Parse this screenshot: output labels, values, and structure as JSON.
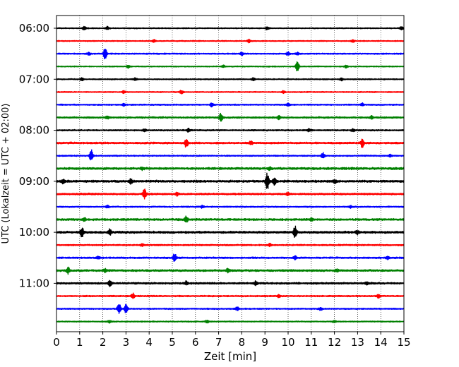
{
  "chart_data": {
    "type": "line",
    "xlabel": "Zeit  [min]",
    "ylabel": "UTC (Lokalzeit = UTC + 02:00)",
    "xlim": [
      0,
      15
    ],
    "x_ticks": [
      "0",
      "1",
      "2",
      "3",
      "4",
      "5",
      "6",
      "7",
      "8",
      "9",
      "10",
      "11",
      "12",
      "13",
      "14",
      "15"
    ],
    "y_ticks": [
      "06:00",
      "07:00",
      "08:00",
      "09:00",
      "10:00",
      "11:00"
    ],
    "grid": "vertical dotted at each minute",
    "colors": [
      "#000000",
      "#ff0000",
      "#0000ff",
      "#008000"
    ],
    "rows": [
      {
        "start": "06:00",
        "color": "#000000",
        "noise": 0.6,
        "events": [
          [
            1.2,
            3.0
          ],
          [
            2.2,
            2.5
          ],
          [
            9.1,
            2.5
          ],
          [
            14.9,
            2.5
          ]
        ]
      },
      {
        "start": "06:15",
        "color": "#ff0000",
        "noise": 0.6,
        "events": [
          [
            4.2,
            1.8
          ],
          [
            8.3,
            2.5
          ],
          [
            12.8,
            1.5
          ]
        ]
      },
      {
        "start": "06:30",
        "color": "#0000ff",
        "noise": 0.7,
        "events": [
          [
            1.4,
            2.0
          ],
          [
            2.1,
            8.0
          ],
          [
            8.0,
            2.5
          ],
          [
            10.0,
            3.0
          ],
          [
            10.4,
            2.0
          ]
        ]
      },
      {
        "start": "06:45",
        "color": "#008000",
        "noise": 0.6,
        "events": [
          [
            3.1,
            2.0
          ],
          [
            7.2,
            1.8
          ],
          [
            10.4,
            7.5
          ],
          [
            12.5,
            1.8
          ]
        ]
      },
      {
        "start": "07:00",
        "color": "#000000",
        "noise": 0.6,
        "events": [
          [
            1.1,
            2.2
          ],
          [
            3.4,
            2.0
          ],
          [
            8.5,
            2.0
          ],
          [
            12.3,
            2.0
          ]
        ]
      },
      {
        "start": "07:15",
        "color": "#ff0000",
        "noise": 0.6,
        "events": [
          [
            2.9,
            2.0
          ],
          [
            5.4,
            3.0
          ],
          [
            9.8,
            1.8
          ]
        ]
      },
      {
        "start": "07:30",
        "color": "#0000ff",
        "noise": 0.7,
        "events": [
          [
            2.9,
            2.0
          ],
          [
            6.7,
            3.0
          ],
          [
            10.0,
            2.0
          ],
          [
            13.2,
            2.0
          ]
        ]
      },
      {
        "start": "07:45",
        "color": "#008000",
        "noise": 0.9,
        "events": [
          [
            2.2,
            2.0
          ],
          [
            7.1,
            6.0
          ],
          [
            9.6,
            2.5
          ],
          [
            13.6,
            2.0
          ]
        ]
      },
      {
        "start": "08:00",
        "color": "#000000",
        "noise": 0.8,
        "events": [
          [
            3.8,
            2.0
          ],
          [
            5.7,
            2.5
          ],
          [
            10.9,
            2.0
          ],
          [
            12.8,
            2.0
          ]
        ]
      },
      {
        "start": "08:15",
        "color": "#ff0000",
        "noise": 1.0,
        "events": [
          [
            5.6,
            7.0
          ],
          [
            8.4,
            2.5
          ],
          [
            13.2,
            6.0
          ]
        ]
      },
      {
        "start": "08:30",
        "color": "#0000ff",
        "noise": 0.7,
        "events": [
          [
            1.5,
            8.5
          ],
          [
            11.5,
            5.0
          ],
          [
            14.4,
            2.0
          ]
        ]
      },
      {
        "start": "08:45",
        "color": "#008000",
        "noise": 1.2,
        "events": [
          [
            3.7,
            2.0
          ],
          [
            9.2,
            2.0
          ]
        ]
      },
      {
        "start": "09:00",
        "color": "#000000",
        "noise": 1.2,
        "events": [
          [
            0.3,
            3.0
          ],
          [
            3.2,
            3.5
          ],
          [
            9.1,
            12.0
          ],
          [
            9.4,
            5.0
          ],
          [
            12.0,
            2.5
          ]
        ]
      },
      {
        "start": "09:15",
        "color": "#ff0000",
        "noise": 1.0,
        "events": [
          [
            3.8,
            7.0
          ],
          [
            5.2,
            2.0
          ],
          [
            10.0,
            2.0
          ]
        ]
      },
      {
        "start": "09:30",
        "color": "#0000ff",
        "noise": 0.7,
        "events": [
          [
            2.2,
            2.0
          ],
          [
            6.3,
            1.8
          ],
          [
            12.7,
            1.8
          ]
        ]
      },
      {
        "start": "09:45",
        "color": "#008000",
        "noise": 1.1,
        "events": [
          [
            1.2,
            2.5
          ],
          [
            5.6,
            4.0
          ],
          [
            11.0,
            2.0
          ]
        ]
      },
      {
        "start": "10:00",
        "color": "#000000",
        "noise": 1.2,
        "events": [
          [
            1.1,
            7.0
          ],
          [
            2.3,
            4.0
          ],
          [
            10.3,
            9.0
          ],
          [
            13.0,
            2.5
          ]
        ]
      },
      {
        "start": "10:15",
        "color": "#ff0000",
        "noise": 0.8,
        "events": [
          [
            3.7,
            2.0
          ],
          [
            9.2,
            2.0
          ]
        ]
      },
      {
        "start": "10:30",
        "color": "#0000ff",
        "noise": 0.9,
        "events": [
          [
            1.8,
            2.0
          ],
          [
            5.1,
            6.5
          ],
          [
            10.3,
            2.5
          ],
          [
            14.3,
            2.0
          ]
        ]
      },
      {
        "start": "10:45",
        "color": "#008000",
        "noise": 1.1,
        "events": [
          [
            0.5,
            4.0
          ],
          [
            2.1,
            2.0
          ],
          [
            7.4,
            2.5
          ],
          [
            12.1,
            2.0
          ]
        ]
      },
      {
        "start": "11:00",
        "color": "#000000",
        "noise": 1.0,
        "events": [
          [
            2.3,
            4.5
          ],
          [
            5.6,
            2.5
          ],
          [
            8.6,
            2.5
          ],
          [
            13.4,
            2.0
          ]
        ]
      },
      {
        "start": "11:15",
        "color": "#ff0000",
        "noise": 0.8,
        "events": [
          [
            3.3,
            4.0
          ],
          [
            9.6,
            2.5
          ],
          [
            13.9,
            2.5
          ]
        ]
      },
      {
        "start": "11:30",
        "color": "#0000ff",
        "noise": 0.7,
        "events": [
          [
            2.7,
            8.0
          ],
          [
            3.0,
            6.0
          ],
          [
            7.8,
            2.5
          ],
          [
            11.4,
            2.0
          ]
        ]
      },
      {
        "start": "11:45",
        "color": "#008000",
        "noise": 0.6,
        "events": [
          [
            2.3,
            1.8
          ],
          [
            6.5,
            1.8
          ],
          [
            12.0,
            1.8
          ]
        ]
      }
    ]
  }
}
